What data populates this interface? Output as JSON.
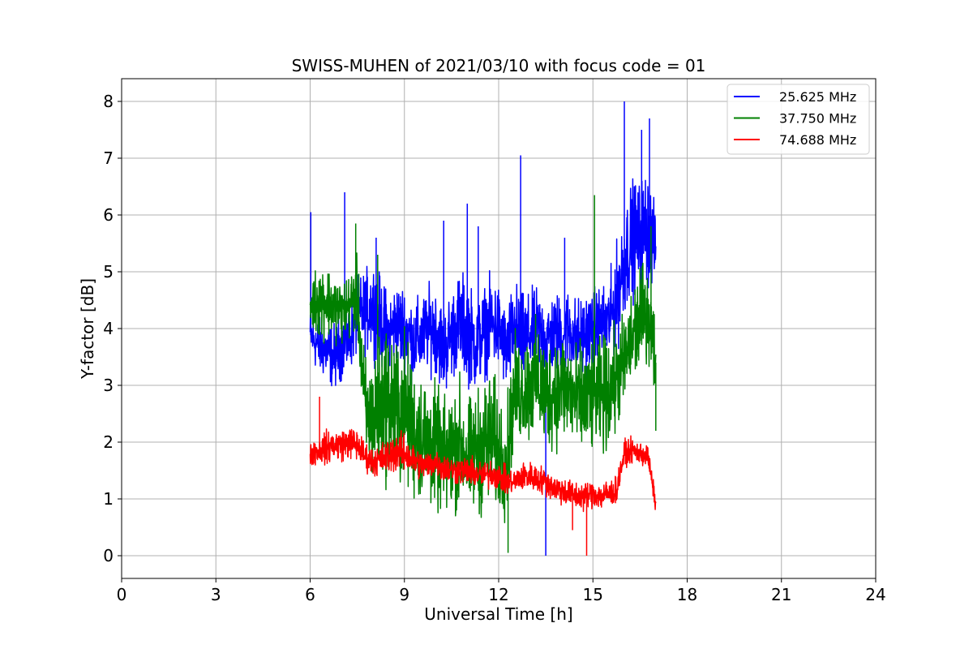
{
  "chart_data": {
    "type": "line",
    "title": "SWISS-MUHEN of 2021/03/10 with focus code = 01",
    "xlabel": "Universal Time [h]",
    "ylabel": "Y-factor [dB]",
    "xlim": [
      0,
      24
    ],
    "ylim": [
      -0.4,
      8.4
    ],
    "xticks": [
      0,
      3,
      6,
      9,
      12,
      15,
      18,
      21,
      24
    ],
    "yticks": [
      0,
      1,
      2,
      3,
      4,
      5,
      6,
      7,
      8
    ],
    "grid": true,
    "legend_position": "top-right",
    "series": [
      {
        "name": "25.625 MHz",
        "color": "#0000ff",
        "x": [
          6.0,
          6.25,
          6.5,
          6.75,
          7.0,
          7.25,
          7.5,
          7.75,
          8.0,
          8.25,
          8.5,
          8.75,
          9.0,
          9.25,
          9.5,
          9.75,
          10.0,
          10.25,
          10.5,
          10.75,
          11.0,
          11.25,
          11.5,
          11.75,
          12.0,
          12.25,
          12.5,
          12.75,
          13.0,
          13.25,
          13.5,
          13.75,
          14.0,
          14.25,
          14.5,
          14.75,
          15.0,
          15.25,
          15.5,
          15.75,
          16.0,
          16.25,
          16.5,
          16.75,
          17.0
        ],
        "mid": [
          3.9,
          3.7,
          3.6,
          3.5,
          3.7,
          3.8,
          4.2,
          4.3,
          4.4,
          4.1,
          3.9,
          4.1,
          4.0,
          3.8,
          3.8,
          4.0,
          4.0,
          3.6,
          3.9,
          4.1,
          4.0,
          3.7,
          3.9,
          4.1,
          4.0,
          3.6,
          4.0,
          3.8,
          3.9,
          4.0,
          3.8,
          3.9,
          3.9,
          4.0,
          3.8,
          3.9,
          4.0,
          4.1,
          4.1,
          4.5,
          5.2,
          5.6,
          5.6,
          5.8,
          5.4
        ],
        "amp": [
          0.6,
          0.7,
          0.7,
          0.8,
          0.8,
          0.8,
          0.9,
          1.0,
          1.1,
          1.1,
          1.0,
          1.0,
          1.1,
          1.0,
          1.0,
          1.0,
          1.1,
          1.1,
          1.1,
          1.2,
          1.3,
          1.1,
          1.1,
          1.1,
          1.1,
          1.0,
          1.2,
          1.1,
          1.0,
          1.0,
          1.0,
          1.0,
          1.0,
          1.0,
          1.0,
          1.0,
          1.0,
          0.9,
          1.0,
          1.3,
          1.4,
          1.4,
          1.4,
          1.5,
          0.8
        ],
        "spikes": [
          [
            6.02,
            6.05
          ],
          [
            7.1,
            6.4
          ],
          [
            8.1,
            5.6
          ],
          [
            10.25,
            5.9
          ],
          [
            11.0,
            6.2
          ],
          [
            11.35,
            5.8
          ],
          [
            12.7,
            7.05
          ],
          [
            13.5,
            0.0
          ],
          [
            14.1,
            5.6
          ],
          [
            16.0,
            8.0
          ],
          [
            16.55,
            7.5
          ],
          [
            16.8,
            7.7
          ]
        ]
      },
      {
        "name": "37.750 MHz",
        "color": "#008000",
        "x": [
          6.0,
          6.25,
          6.5,
          6.75,
          7.0,
          7.25,
          7.5,
          7.75,
          8.0,
          8.25,
          8.5,
          8.75,
          9.0,
          9.25,
          9.5,
          9.75,
          10.0,
          10.25,
          10.5,
          10.75,
          11.0,
          11.25,
          11.5,
          11.75,
          12.0,
          12.25,
          12.5,
          12.75,
          13.0,
          13.25,
          13.5,
          13.75,
          14.0,
          14.25,
          14.5,
          14.75,
          15.0,
          15.25,
          15.5,
          15.75,
          16.0,
          16.25,
          16.5,
          16.75,
          17.0
        ],
        "mid": [
          4.4,
          4.5,
          4.5,
          4.4,
          4.3,
          4.4,
          4.6,
          2.5,
          2.4,
          2.6,
          2.8,
          2.5,
          2.6,
          2.2,
          2.1,
          2.0,
          1.9,
          1.7,
          1.8,
          2.0,
          1.7,
          1.8,
          1.9,
          2.1,
          1.8,
          1.7,
          2.9,
          2.9,
          3.0,
          3.1,
          2.8,
          2.9,
          3.0,
          2.9,
          2.7,
          2.7,
          2.8,
          2.8,
          2.9,
          3.1,
          3.4,
          3.8,
          4.2,
          4.3,
          3.4
        ],
        "amp": [
          0.6,
          0.9,
          0.9,
          0.8,
          0.8,
          0.8,
          0.9,
          1.4,
          1.6,
          1.8,
          1.9,
          1.9,
          1.9,
          1.7,
          1.6,
          1.6,
          1.5,
          1.4,
          1.5,
          1.6,
          1.4,
          1.5,
          1.6,
          1.7,
          1.5,
          1.4,
          1.3,
          1.3,
          1.4,
          1.4,
          1.4,
          1.4,
          1.4,
          1.4,
          1.4,
          1.4,
          1.4,
          1.4,
          1.4,
          1.3,
          1.2,
          1.3,
          1.3,
          1.1,
          1.0
        ],
        "spikes": [
          [
            7.45,
            5.85
          ],
          [
            8.15,
            5.3
          ],
          [
            12.3,
            0.05
          ],
          [
            15.05,
            6.35
          ],
          [
            16.85,
            5.8
          ],
          [
            17.0,
            2.2
          ]
        ]
      },
      {
        "name": "74.688 MHz",
        "color": "#ff0000",
        "x": [
          6.0,
          6.25,
          6.5,
          6.75,
          7.0,
          7.25,
          7.5,
          7.75,
          8.0,
          8.25,
          8.5,
          8.75,
          9.0,
          9.25,
          9.5,
          9.75,
          10.0,
          10.25,
          10.5,
          10.75,
          11.0,
          11.25,
          11.5,
          11.75,
          12.0,
          12.25,
          12.5,
          12.75,
          13.0,
          13.25,
          13.5,
          13.75,
          14.0,
          14.25,
          14.5,
          14.75,
          15.0,
          15.25,
          15.5,
          15.75,
          16.0,
          16.25,
          16.5,
          16.75,
          17.0
        ],
        "mid": [
          1.8,
          1.85,
          1.9,
          1.95,
          1.95,
          2.0,
          1.95,
          1.75,
          1.65,
          1.7,
          1.75,
          1.85,
          1.8,
          1.7,
          1.6,
          1.6,
          1.65,
          1.55,
          1.5,
          1.5,
          1.5,
          1.45,
          1.4,
          1.45,
          1.4,
          1.3,
          1.3,
          1.4,
          1.4,
          1.35,
          1.3,
          1.2,
          1.15,
          1.1,
          1.05,
          1.05,
          1.1,
          1.05,
          1.1,
          1.15,
          1.8,
          1.85,
          1.8,
          1.75,
          0.9
        ],
        "amp": [
          0.3,
          0.35,
          0.4,
          0.4,
          0.4,
          0.4,
          0.4,
          0.35,
          0.35,
          0.4,
          0.45,
          0.5,
          0.45,
          0.4,
          0.35,
          0.35,
          0.35,
          0.35,
          0.35,
          0.35,
          0.35,
          0.35,
          0.35,
          0.35,
          0.35,
          0.35,
          0.3,
          0.35,
          0.35,
          0.35,
          0.35,
          0.35,
          0.35,
          0.35,
          0.35,
          0.35,
          0.35,
          0.35,
          0.35,
          0.35,
          0.3,
          0.3,
          0.3,
          0.3,
          0.2
        ],
        "spikes": [
          [
            6.3,
            2.8
          ],
          [
            14.8,
            0.0
          ],
          [
            14.35,
            0.45
          ]
        ]
      }
    ]
  }
}
